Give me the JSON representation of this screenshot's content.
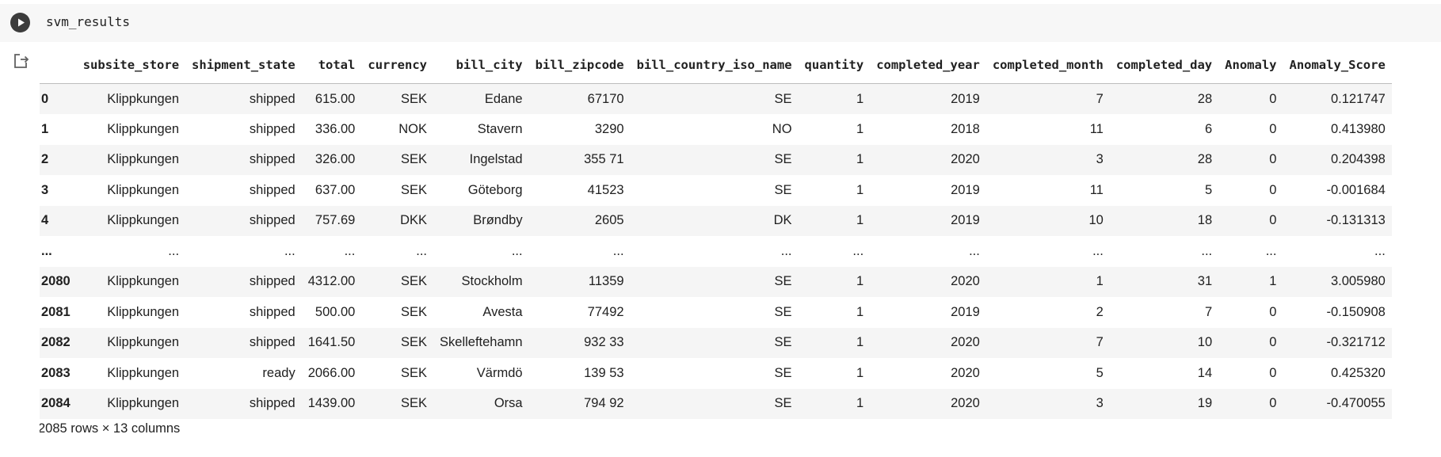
{
  "cell": {
    "code": "svm_results"
  },
  "table": {
    "columns": [
      "subsite_store",
      "shipment_state",
      "total",
      "currency",
      "bill_city",
      "bill_zipcode",
      "bill_country_iso_name",
      "quantity",
      "completed_year",
      "completed_month",
      "completed_day",
      "Anomaly",
      "Anomaly_Score"
    ],
    "rows": [
      {
        "index": "0",
        "cells": [
          "Klippkungen",
          "shipped",
          "615.00",
          "SEK",
          "Edane",
          "67170",
          "SE",
          "1",
          "2019",
          "7",
          "28",
          "0",
          "0.121747"
        ]
      },
      {
        "index": "1",
        "cells": [
          "Klippkungen",
          "shipped",
          "336.00",
          "NOK",
          "Stavern",
          "3290",
          "NO",
          "1",
          "2018",
          "11",
          "6",
          "0",
          "0.413980"
        ]
      },
      {
        "index": "2",
        "cells": [
          "Klippkungen",
          "shipped",
          "326.00",
          "SEK",
          "Ingelstad",
          "355 71",
          "SE",
          "1",
          "2020",
          "3",
          "28",
          "0",
          "0.204398"
        ]
      },
      {
        "index": "3",
        "cells": [
          "Klippkungen",
          "shipped",
          "637.00",
          "SEK",
          "Göteborg",
          "41523",
          "SE",
          "1",
          "2019",
          "11",
          "5",
          "0",
          "-0.001684"
        ]
      },
      {
        "index": "4",
        "cells": [
          "Klippkungen",
          "shipped",
          "757.69",
          "DKK",
          "Brøndby",
          "2605",
          "DK",
          "1",
          "2019",
          "10",
          "18",
          "0",
          "-0.131313"
        ]
      },
      {
        "index": "...",
        "cells": [
          "...",
          "...",
          "...",
          "...",
          "...",
          "...",
          "...",
          "...",
          "...",
          "...",
          "...",
          "...",
          "..."
        ]
      },
      {
        "index": "2080",
        "cells": [
          "Klippkungen",
          "shipped",
          "4312.00",
          "SEK",
          "Stockholm",
          "11359",
          "SE",
          "1",
          "2020",
          "1",
          "31",
          "1",
          "3.005980"
        ]
      },
      {
        "index": "2081",
        "cells": [
          "Klippkungen",
          "shipped",
          "500.00",
          "SEK",
          "Avesta",
          "77492",
          "SE",
          "1",
          "2019",
          "2",
          "7",
          "0",
          "-0.150908"
        ]
      },
      {
        "index": "2082",
        "cells": [
          "Klippkungen",
          "shipped",
          "1641.50",
          "SEK",
          "Skelleftehamn",
          "932 33",
          "SE",
          "1",
          "2020",
          "7",
          "10",
          "0",
          "-0.321712"
        ]
      },
      {
        "index": "2083",
        "cells": [
          "Klippkungen",
          "ready",
          "2066.00",
          "SEK",
          "Värmdö",
          "139 53",
          "SE",
          "1",
          "2020",
          "5",
          "14",
          "0",
          "0.425320"
        ]
      },
      {
        "index": "2084",
        "cells": [
          "Klippkungen",
          "shipped",
          "1439.00",
          "SEK",
          "Orsa",
          "794 92",
          "SE",
          "1",
          "2020",
          "3",
          "19",
          "0",
          "-0.470055"
        ]
      }
    ]
  },
  "shape_text": "2085 rows × 13 columns",
  "icons": {
    "run": "play-icon",
    "output": "output-redirect-icon"
  },
  "colors": {
    "run_button": "#3c3c3c",
    "cell_background": "#f7f7f7",
    "row_stripe": "#f5f5f5"
  }
}
